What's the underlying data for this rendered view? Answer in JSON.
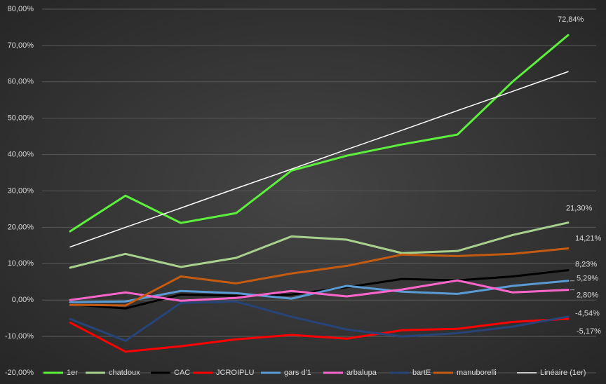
{
  "chart_data": {
    "type": "line",
    "categories": [
      null,
      null,
      null,
      null,
      null,
      null,
      null,
      null,
      null,
      null
    ],
    "ylim": [
      -20,
      80
    ],
    "yticks": [
      {
        "value": -20,
        "label": "-20,00%"
      },
      {
        "value": -10,
        "label": "-10,00%"
      },
      {
        "value": 0,
        "label": "0,00%"
      },
      {
        "value": 10,
        "label": "10,00%"
      },
      {
        "value": 20,
        "label": "20,00%"
      },
      {
        "value": 30,
        "label": "30,00%"
      },
      {
        "value": 40,
        "label": "40,00%"
      },
      {
        "value": 50,
        "label": "50,00%"
      },
      {
        "value": 60,
        "label": "60,00%"
      },
      {
        "value": 70,
        "label": "70,00%"
      },
      {
        "value": 80,
        "label": "80,00%"
      }
    ],
    "grid": true,
    "legend": "bottom",
    "series": [
      {
        "name": "1er",
        "color": "#5cf03c",
        "values": [
          18.9,
          28.7,
          21.2,
          23.9,
          35.6,
          39.7,
          42.8,
          45.5,
          60.1,
          72.84
        ],
        "value_labels": [
          null,
          null,
          null,
          null,
          null,
          null,
          null,
          null,
          null,
          "72,84%"
        ]
      },
      {
        "name": "chatdoux",
        "color": "#a9d18e",
        "values": [
          8.9,
          12.7,
          9.1,
          11.6,
          17.5,
          16.6,
          12.9,
          13.5,
          17.9,
          21.3
        ],
        "value_labels": [
          null,
          null,
          null,
          null,
          null,
          null,
          null,
          null,
          null,
          "21,30%"
        ]
      },
      {
        "name": "CAC",
        "color": "#000000",
        "values": [
          -1.2,
          -2.3,
          1.5,
          1.2,
          1.5,
          3.5,
          5.8,
          5.4,
          6.5,
          8.23
        ],
        "value_labels": [
          null,
          null,
          null,
          null,
          null,
          null,
          null,
          null,
          null,
          "8,23%"
        ]
      },
      {
        "name": "JCROIPLU",
        "color": "#ff0000",
        "values": [
          -6.2,
          -14.2,
          -12.7,
          -10.8,
          -9.6,
          -10.6,
          -8.3,
          -7.9,
          -6.0,
          -5.17
        ],
        "value_labels": [
          null,
          null,
          null,
          null,
          null,
          null,
          null,
          null,
          null,
          "-5,17%"
        ]
      },
      {
        "name": "gars d'1",
        "color": "#5b9bd5",
        "values": [
          -0.6,
          -0.4,
          2.5,
          1.9,
          0.4,
          3.9,
          2.3,
          1.7,
          3.9,
          5.29
        ],
        "value_labels": [
          null,
          null,
          null,
          null,
          null,
          null,
          null,
          null,
          null,
          "5,29%"
        ]
      },
      {
        "name": "arbalupa",
        "color": "#ff66cc",
        "values": [
          0,
          2.1,
          -0.2,
          0.6,
          2.5,
          1.0,
          2.9,
          5.4,
          2.1,
          2.8
        ],
        "value_labels": [
          null,
          null,
          null,
          null,
          null,
          null,
          null,
          null,
          null,
          "2,80%"
        ]
      },
      {
        "name": "bartE",
        "color": "#264478",
        "values": [
          -5.2,
          -11.2,
          -0.8,
          -0.4,
          -4.6,
          -8.1,
          -10.0,
          -9.1,
          -7.3,
          -4.54
        ],
        "value_labels": [
          null,
          null,
          null,
          null,
          null,
          null,
          null,
          null,
          null,
          "-4,54%"
        ]
      },
      {
        "name": "manuborelli",
        "color": "#c55a11",
        "values": [
          -1.3,
          -1.5,
          6.5,
          4.6,
          7.3,
          9.4,
          12.5,
          12.1,
          12.7,
          14.21
        ],
        "value_labels": [
          null,
          null,
          null,
          null,
          null,
          null,
          null,
          null,
          null,
          "14,21%"
        ]
      },
      {
        "name": "Linéaire (1er)",
        "color": "#ffffff",
        "values": [
          14.6,
          20.0,
          25.3,
          30.7,
          36.0,
          41.4,
          46.7,
          52.1,
          57.4,
          62.8
        ]
      }
    ]
  }
}
